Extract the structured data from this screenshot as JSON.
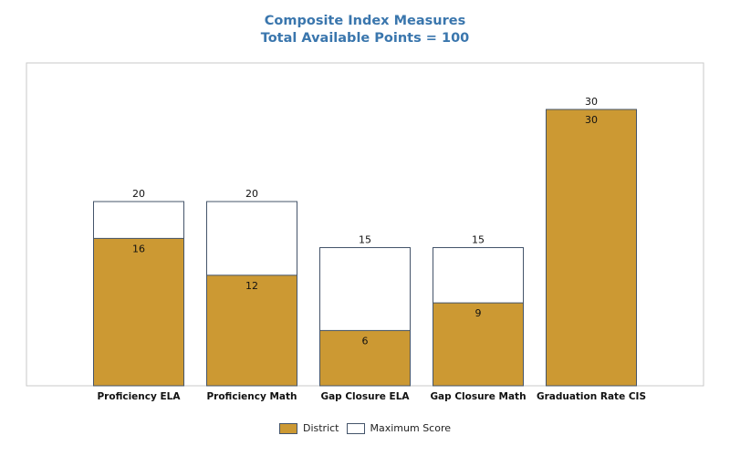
{
  "chart_data": {
    "type": "bar",
    "title": "Composite Index Measures",
    "subtitle": "Total Available Points = 100",
    "categories": [
      "Proficiency ELA",
      "Proficiency Math",
      "Gap Closure ELA",
      "Gap Closure Math",
      "Graduation Rate CIS"
    ],
    "series": [
      {
        "name": "District",
        "values": [
          16,
          12,
          6,
          9,
          30
        ],
        "color": "#cc9933"
      },
      {
        "name": "Maximum Score",
        "values": [
          20,
          20,
          15,
          15,
          30
        ],
        "color": "#ffffff"
      }
    ],
    "xlabel": "",
    "ylabel": "",
    "ylim": [
      0,
      35
    ],
    "grid": false,
    "legend_position": "bottom",
    "border_color": "#44546a"
  }
}
